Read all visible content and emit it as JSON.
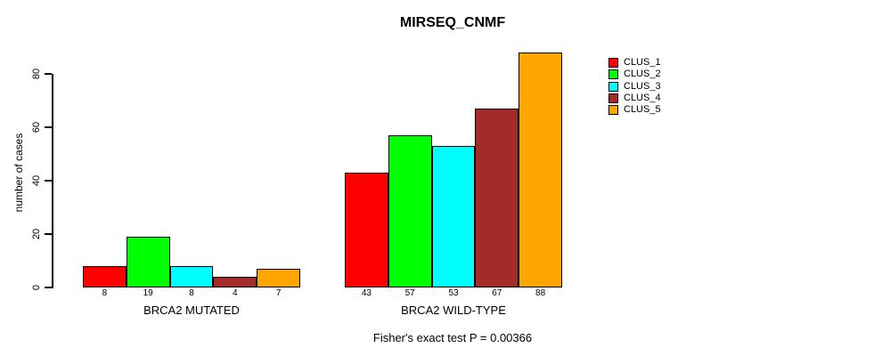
{
  "figure": {
    "background": "#FFFFFF",
    "text_color": "#000000",
    "axis_color": "#000000"
  },
  "chart_data": {
    "type": "bar",
    "title": "MIRSEQ_CNMF",
    "ylabel": "number of cases",
    "xlabel": "",
    "annotation": "Fisher's exact test P = 0.00366",
    "groups": [
      "BRCA2 MUTATED",
      "BRCA2 WILD-TYPE"
    ],
    "series": [
      {
        "name": "CLUS_1",
        "color": "#FF0000",
        "values": [
          8,
          43
        ]
      },
      {
        "name": "CLUS_2",
        "color": "#00FF00",
        "values": [
          19,
          57
        ]
      },
      {
        "name": "CLUS_3",
        "color": "#00FFFF",
        "values": [
          8,
          53
        ]
      },
      {
        "name": "CLUS_4",
        "color": "#A52A2A",
        "values": [
          4,
          67
        ]
      },
      {
        "name": "CLUS_5",
        "color": "#FFA500",
        "values": [
          7,
          88
        ]
      }
    ],
    "bar_value_labels": [
      [
        8,
        19,
        8,
        4,
        7
      ],
      [
        43,
        57,
        53,
        67,
        88
      ]
    ],
    "yticks": [
      0,
      20,
      40,
      60,
      80
    ],
    "ylim": [
      0,
      80
    ],
    "grid": false,
    "legend": {
      "position": "top-right",
      "entries": [
        "CLUS_1",
        "CLUS_2",
        "CLUS_3",
        "CLUS_4",
        "CLUS_5"
      ]
    }
  }
}
